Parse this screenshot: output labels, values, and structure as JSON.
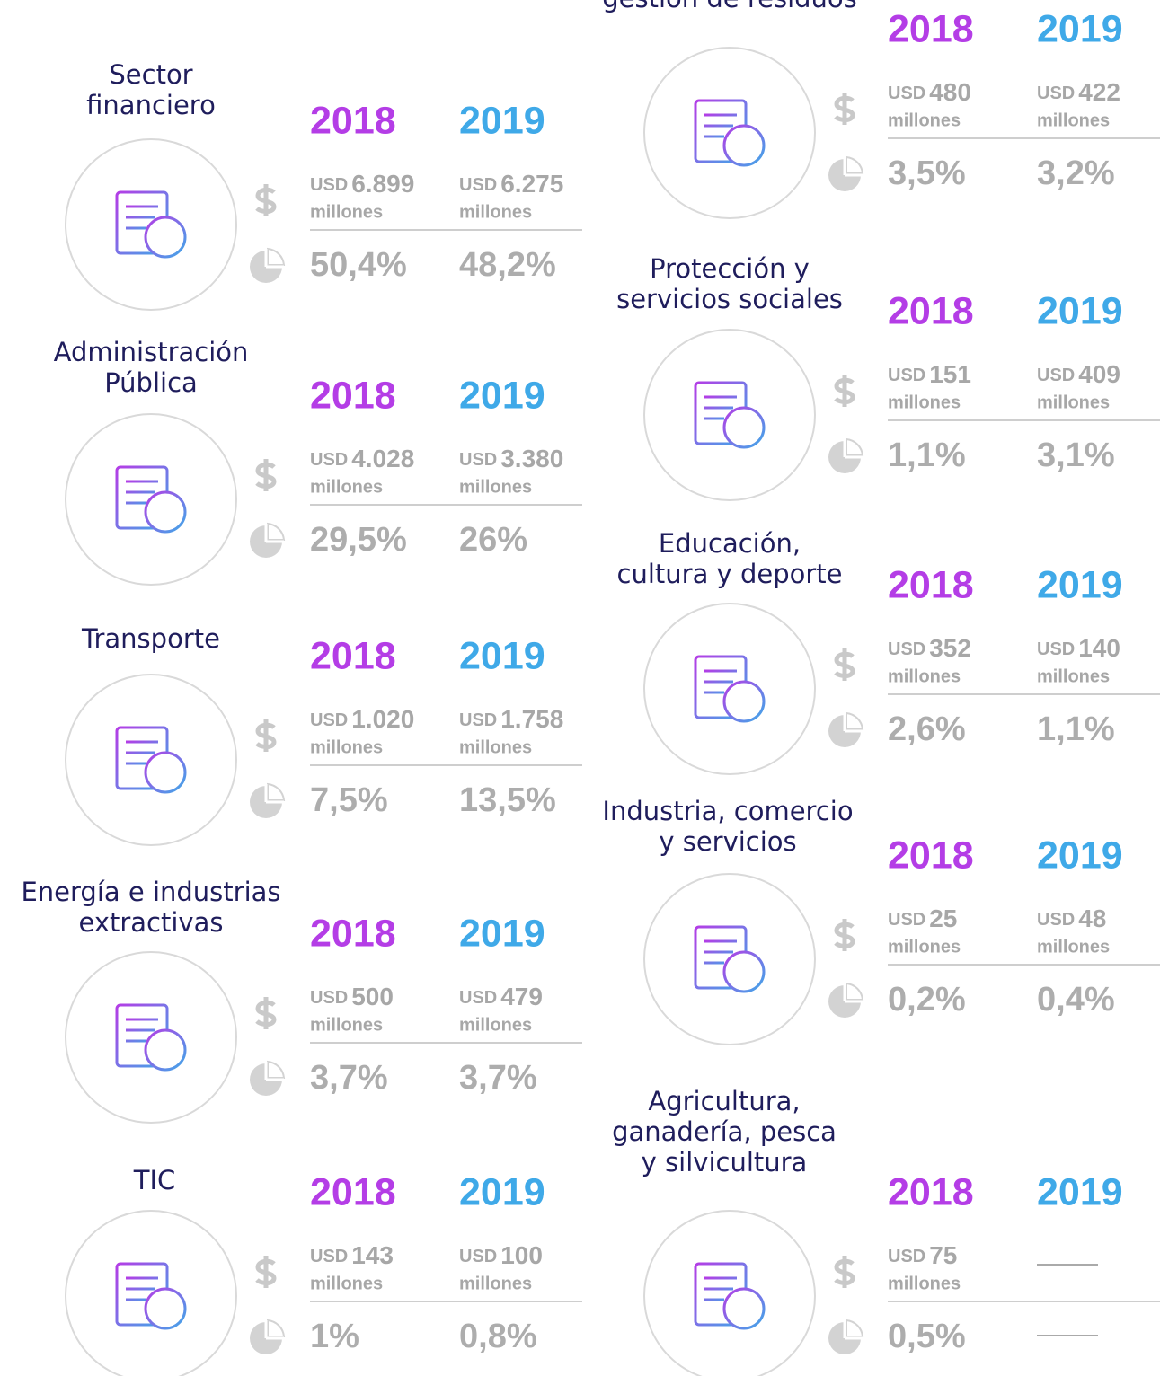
{
  "sectors": [
    {
      "title": [
        "Sector",
        "financiero"
      ],
      "columns": [
        {
          "year": "2018",
          "currency": "USD",
          "amount": "6.899",
          "unit": "millones",
          "share": "50,4%"
        },
        {
          "year": "2019",
          "currency": "USD",
          "amount": "6.275",
          "unit": "millones",
          "share": "48,2%"
        }
      ]
    },
    {
      "title": [
        "Administración",
        "Pública"
      ],
      "columns": [
        {
          "year": "2018",
          "currency": "USD",
          "amount": "4.028",
          "unit": "millones",
          "share": "29,5%"
        },
        {
          "year": "2019",
          "currency": "USD",
          "amount": "3.380",
          "unit": "millones",
          "share": "26%"
        }
      ]
    },
    {
      "title": [
        "Transporte"
      ],
      "columns": [
        {
          "year": "2018",
          "currency": "USD",
          "amount": "1.020",
          "unit": "millones",
          "share": "7,5%"
        },
        {
          "year": "2019",
          "currency": "USD",
          "amount": "1.758",
          "unit": "millones",
          "share": "13,5%"
        }
      ]
    },
    {
      "title": [
        "Energía e industrias",
        "extractivas"
      ],
      "columns": [
        {
          "year": "2018",
          "currency": "USD",
          "amount": "500",
          "unit": "millones",
          "share": "3,7%"
        },
        {
          "year": "2019",
          "currency": "USD",
          "amount": "479",
          "unit": "millones",
          "share": "3,7%"
        }
      ]
    },
    {
      "title": [
        "TIC"
      ],
      "columns": [
        {
          "year": "2018",
          "currency": "USD",
          "amount": "143",
          "unit": "millones",
          "share": "1%"
        },
        {
          "year": "2019",
          "currency": "USD",
          "amount": "100",
          "unit": "millones",
          "share": "0,8%"
        }
      ]
    },
    {
      "title": [
        "gestión de residuos"
      ],
      "columns": [
        {
          "year": "2018",
          "currency": "USD",
          "amount": "480",
          "unit": "millones",
          "share": "3,5%"
        },
        {
          "year": "2019",
          "currency": "USD",
          "amount": "422",
          "unit": "millones",
          "share": "3,2%"
        }
      ]
    },
    {
      "title": [
        "Protección y",
        "servicios sociales"
      ],
      "columns": [
        {
          "year": "2018",
          "currency": "USD",
          "amount": "151",
          "unit": "millones",
          "share": "1,1%"
        },
        {
          "year": "2019",
          "currency": "USD",
          "amount": "409",
          "unit": "millones",
          "share": "3,1%"
        }
      ]
    },
    {
      "title": [
        "Educación,",
        "cultura y deporte"
      ],
      "columns": [
        {
          "year": "2018",
          "currency": "USD",
          "amount": "352",
          "unit": "millones",
          "share": "2,6%"
        },
        {
          "year": "2019",
          "currency": "USD",
          "amount": "140",
          "unit": "millones",
          "share": "1,1%"
        }
      ]
    },
    {
      "title": [
        "Industria, comercio",
        "y servicios"
      ],
      "columns": [
        {
          "year": "2018",
          "currency": "USD",
          "amount": "25",
          "unit": "millones",
          "share": "0,2%"
        },
        {
          "year": "2019",
          "currency": "USD",
          "amount": "48",
          "unit": "millones",
          "share": "0,4%"
        }
      ]
    },
    {
      "title": [
        "Agricultura,",
        "ganadería, pesca",
        "y silvicultura"
      ],
      "columns": [
        {
          "year": "2018",
          "currency": "USD",
          "amount": "75",
          "unit": "millones",
          "share": "0,5%"
        },
        {
          "year": "2019"
        }
      ]
    }
  ]
}
